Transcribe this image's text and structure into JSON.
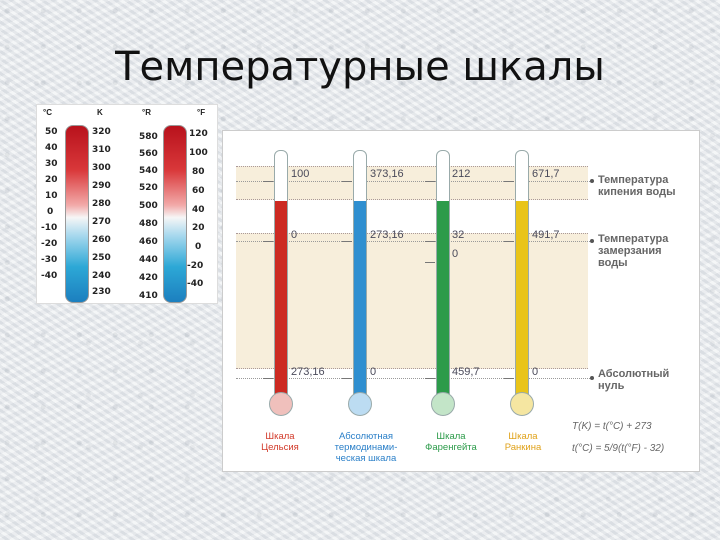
{
  "title": "Температурные шкалы",
  "small_panel": {
    "headers": [
      "°C",
      "K",
      "°R",
      "°F"
    ],
    "celsius": [
      "50",
      "40",
      "30",
      "20",
      "10",
      "0",
      "-10",
      "-20",
      "-30",
      "-40"
    ],
    "kelvin": [
      "320",
      "310",
      "300",
      "290",
      "280",
      "270",
      "260",
      "250",
      "240",
      "230"
    ],
    "rankine": [
      "580",
      "560",
      "540",
      "520",
      "500",
      "480",
      "460",
      "440",
      "420",
      "410"
    ],
    "fahrenheit": [
      "120",
      "100",
      "80",
      "60",
      "40",
      "20",
      "0",
      "-20",
      "-40"
    ]
  },
  "main": {
    "rows": {
      "boiling": [
        "100",
        "373,16",
        "212",
        "671,7"
      ],
      "freezing": [
        "0",
        "273,16",
        "32",
        "491,7"
      ],
      "freezing_extra": "0",
      "zero": [
        "273,16",
        "0",
        "459,7",
        "0"
      ]
    },
    "descriptions": {
      "boiling": [
        "Температура",
        "кипения воды"
      ],
      "freezing": [
        "Температура",
        "замерзания",
        "воды"
      ],
      "zero": [
        "Абсолютный",
        "нуль"
      ]
    },
    "captions": [
      [
        "Шкала",
        "Цельсия"
      ],
      [
        "Абсолютная",
        "термодинами-",
        "ческая шкала"
      ],
      [
        "Шкала",
        "Фаренгейта"
      ],
      [
        "Шкала",
        "Ранкина"
      ]
    ],
    "formulas": [
      "T(K) = t(°C) + 273",
      "t(°C) = 5/9(t(°F) - 32)"
    ],
    "colors": {
      "celsius": "#cc2a22",
      "kelvin": "#2f8fd0",
      "fahrenheit": "#2c9b4a",
      "rankine": "#e9c419",
      "celsius_caption": "#d23a2a",
      "kelvin_caption": "#2a7fc8",
      "fahrenheit_caption": "#2c9b4a",
      "rankine_caption": "#e0a21a"
    }
  }
}
